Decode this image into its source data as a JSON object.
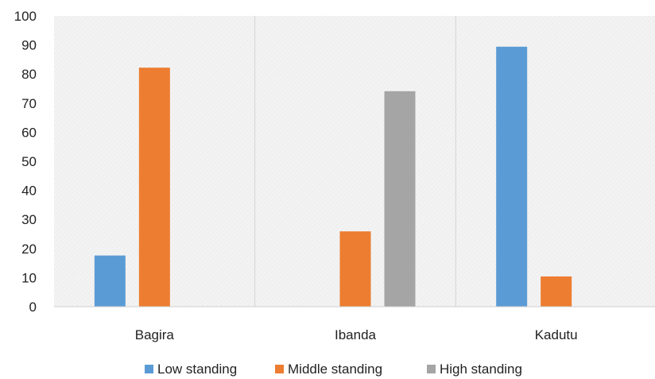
{
  "chart_data": {
    "type": "bar",
    "title": "",
    "xlabel": "",
    "ylabel": "",
    "categories": [
      "Bagira",
      "Ibanda",
      "Kadutu"
    ],
    "series": [
      {
        "name": "Low standing",
        "color": "#5b9bd5",
        "values": [
          17.6,
          0,
          89.4
        ]
      },
      {
        "name": "Middle standing",
        "color": "#ed7d31",
        "values": [
          82.2,
          25.9,
          10.4
        ]
      },
      {
        "name": "High standing",
        "color": "#a5a5a5",
        "values": [
          0,
          74.1,
          0
        ]
      }
    ],
    "ylim": [
      0,
      100
    ],
    "yticks": [
      "0",
      "10",
      "20",
      "30",
      "40",
      "50",
      "60",
      "70",
      "80",
      "90",
      "100"
    ],
    "grid": "vertical category separators",
    "legend": "bottom"
  }
}
